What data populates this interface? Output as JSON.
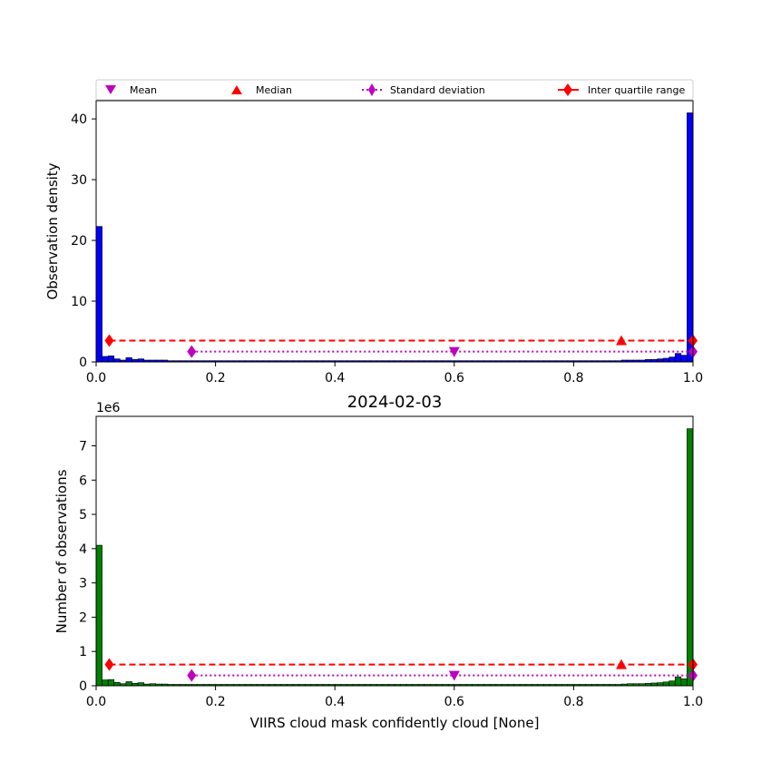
{
  "chart_data": [
    {
      "type": "bar",
      "title": "",
      "xlabel": "",
      "ylabel": "Observation density",
      "xlim": [
        0.0,
        1.0
      ],
      "ylim": [
        0,
        43
      ],
      "xticks": [
        "0.0",
        "0.2",
        "0.4",
        "0.6",
        "0.8",
        "1.0"
      ],
      "yticks": [
        "0",
        "10",
        "20",
        "30",
        "40"
      ],
      "bar_color": "#0000ff",
      "bin_width": 0.01,
      "values": [
        22.3,
        0.9,
        1.0,
        0.5,
        0.3,
        0.7,
        0.4,
        0.5,
        0.3,
        0.3,
        0.3,
        0.3,
        0.2,
        0.2,
        0.2,
        0.2,
        0.2,
        0.2,
        0.2,
        0.2,
        0.2,
        0.2,
        0.2,
        0.2,
        0.2,
        0.2,
        0.2,
        0.2,
        0.2,
        0.2,
        0.2,
        0.2,
        0.2,
        0.2,
        0.2,
        0.2,
        0.2,
        0.2,
        0.2,
        0.2,
        0.2,
        0.2,
        0.2,
        0.2,
        0.2,
        0.2,
        0.2,
        0.2,
        0.2,
        0.2,
        0.2,
        0.2,
        0.2,
        0.2,
        0.2,
        0.2,
        0.2,
        0.2,
        0.2,
        0.2,
        0.2,
        0.2,
        0.2,
        0.2,
        0.2,
        0.2,
        0.2,
        0.2,
        0.2,
        0.2,
        0.2,
        0.2,
        0.2,
        0.2,
        0.2,
        0.2,
        0.2,
        0.2,
        0.2,
        0.2,
        0.2,
        0.2,
        0.2,
        0.2,
        0.2,
        0.2,
        0.2,
        0.2,
        0.3,
        0.3,
        0.3,
        0.3,
        0.4,
        0.4,
        0.5,
        0.6,
        0.8,
        1.4,
        1.1,
        41.0
      ],
      "stats": {
        "mean": {
          "x": 0.6,
          "y": 1.7,
          "color": "#bf00bf"
        },
        "median": {
          "x": 0.88,
          "y": 3.5,
          "color": "#ff0000"
        },
        "std_range": [
          0.16,
          1.0
        ],
        "std_y": 1.7,
        "iqr_range": [
          0.022,
          1.0
        ],
        "iqr_y": 3.5
      },
      "legend": {
        "placement": "top",
        "entries": [
          "Mean",
          "Median",
          "Standard deviation",
          "Inter quartile range"
        ]
      }
    },
    {
      "type": "bar",
      "title": "2024-02-03",
      "xlabel": "VIIRS cloud mask confidently cloud [None]",
      "ylabel": "Number of observations",
      "y_multiplier": "1e6",
      "xlim": [
        0.0,
        1.0
      ],
      "ylim": [
        0,
        7.86
      ],
      "xticks": [
        "0.0",
        "0.2",
        "0.4",
        "0.6",
        "0.8",
        "1.0"
      ],
      "yticks": [
        "0",
        "1",
        "2",
        "3",
        "4",
        "5",
        "6",
        "7"
      ],
      "bar_color": "#008000",
      "bin_width": 0.01,
      "values": [
        4.1,
        0.17,
        0.18,
        0.1,
        0.06,
        0.12,
        0.07,
        0.09,
        0.05,
        0.06,
        0.05,
        0.05,
        0.04,
        0.04,
        0.04,
        0.04,
        0.04,
        0.04,
        0.04,
        0.04,
        0.04,
        0.04,
        0.04,
        0.04,
        0.04,
        0.04,
        0.04,
        0.04,
        0.04,
        0.04,
        0.04,
        0.04,
        0.04,
        0.04,
        0.04,
        0.04,
        0.04,
        0.04,
        0.04,
        0.04,
        0.04,
        0.04,
        0.04,
        0.04,
        0.04,
        0.04,
        0.04,
        0.04,
        0.04,
        0.04,
        0.04,
        0.04,
        0.04,
        0.04,
        0.04,
        0.04,
        0.04,
        0.04,
        0.04,
        0.04,
        0.04,
        0.04,
        0.04,
        0.04,
        0.04,
        0.04,
        0.04,
        0.04,
        0.04,
        0.04,
        0.04,
        0.04,
        0.04,
        0.04,
        0.04,
        0.04,
        0.04,
        0.04,
        0.04,
        0.04,
        0.04,
        0.04,
        0.04,
        0.04,
        0.04,
        0.04,
        0.04,
        0.04,
        0.05,
        0.06,
        0.06,
        0.06,
        0.07,
        0.08,
        0.09,
        0.11,
        0.14,
        0.26,
        0.2,
        7.5
      ],
      "stats": {
        "mean": {
          "x": 0.6,
          "y": 0.3,
          "color": "#bf00bf"
        },
        "median": {
          "x": 0.88,
          "y": 0.62,
          "color": "#ff0000"
        },
        "std_range": [
          0.16,
          1.0
        ],
        "std_y": 0.3,
        "iqr_range": [
          0.022,
          1.0
        ],
        "iqr_y": 0.62
      }
    }
  ]
}
